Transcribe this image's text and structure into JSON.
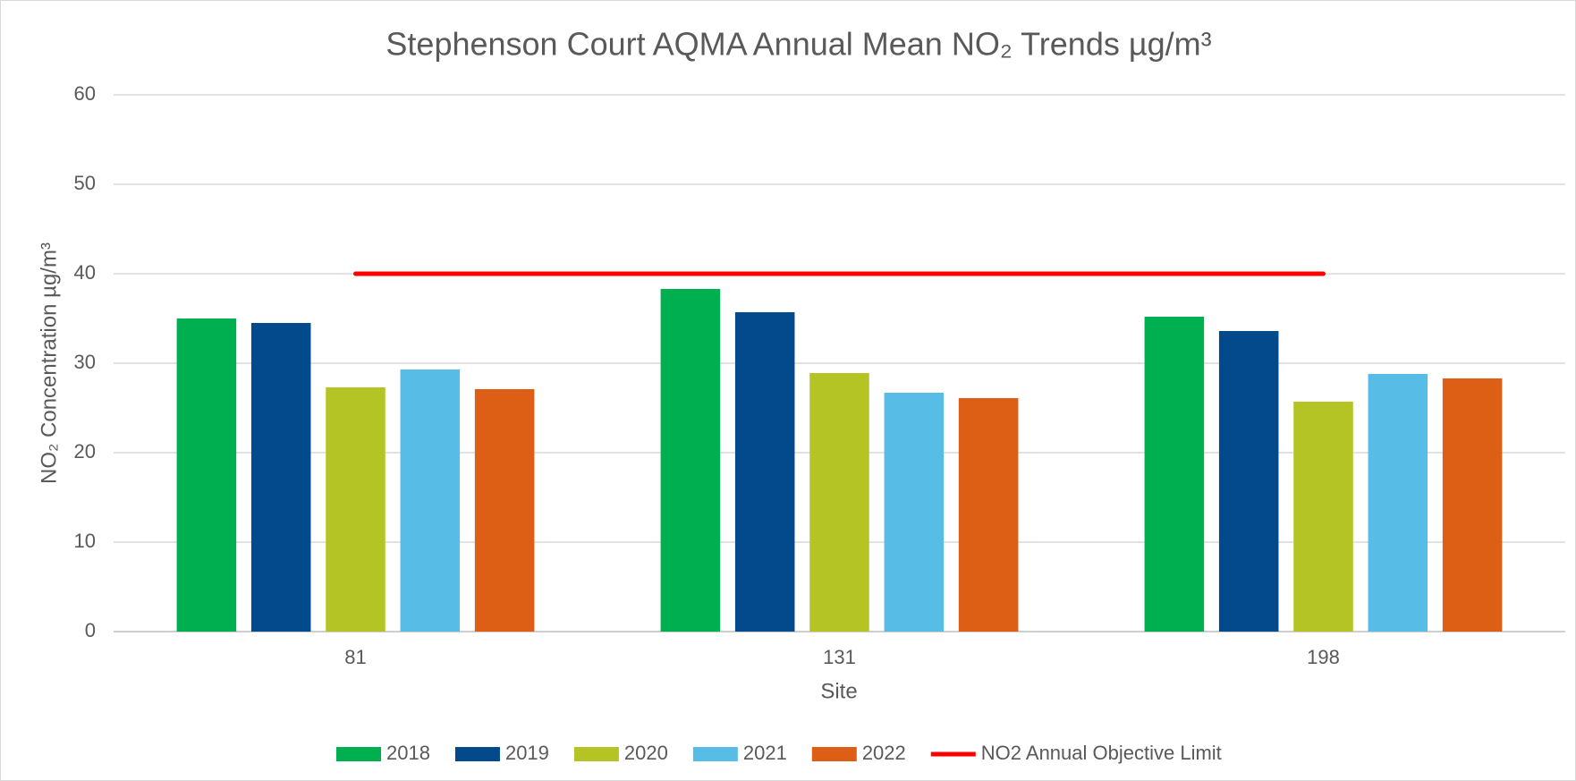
{
  "chart_data": {
    "type": "bar",
    "title": "Stephenson Court AQMA Annual Mean NO₂ Trends µg/m³",
    "x_label": "Site",
    "y_label": "NO₂ Concentration µg/m³",
    "categories": [
      "81",
      "131",
      "198"
    ],
    "series": [
      {
        "name": "2018",
        "color": "#00b050",
        "values": [
          35.0,
          38.3,
          35.2
        ]
      },
      {
        "name": "2019",
        "color": "#034a8c",
        "values": [
          34.5,
          35.7,
          33.6
        ]
      },
      {
        "name": "2020",
        "color": "#b3c424",
        "values": [
          27.3,
          28.9,
          25.7
        ]
      },
      {
        "name": "2021",
        "color": "#57bde6",
        "values": [
          29.3,
          26.7,
          28.8
        ]
      },
      {
        "name": "2022",
        "color": "#dc5f15",
        "values": [
          27.1,
          26.1,
          28.3
        ]
      },
      {
        "name": "NO2 Annual Objective Limit",
        "type": "line",
        "color": "#ff0000",
        "values": [
          40,
          40,
          40
        ]
      }
    ],
    "ylim": [
      0,
      60
    ],
    "yticks": [
      0,
      10,
      20,
      30,
      40,
      50,
      60
    ],
    "grid": true,
    "legend": "bottom"
  }
}
